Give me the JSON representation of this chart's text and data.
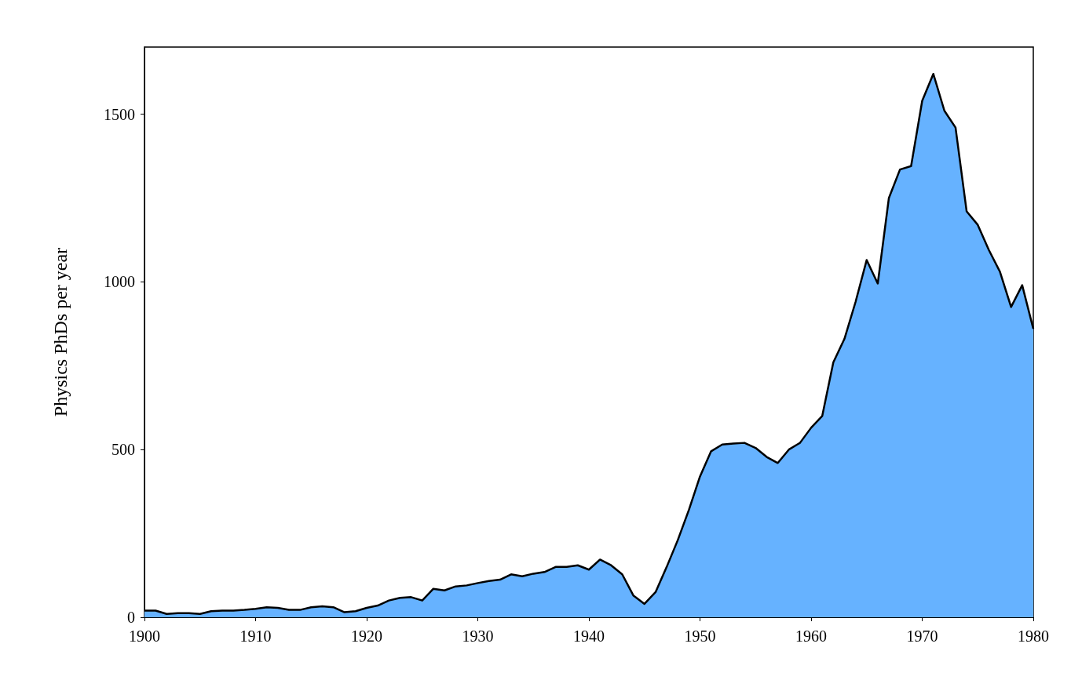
{
  "chart_data": {
    "type": "area",
    "ylabel": "Physics PhDs per year",
    "x": [
      1900,
      1901,
      1902,
      1903,
      1904,
      1905,
      1906,
      1907,
      1908,
      1909,
      1910,
      1911,
      1912,
      1913,
      1914,
      1915,
      1916,
      1917,
      1918,
      1919,
      1920,
      1921,
      1922,
      1923,
      1924,
      1925,
      1926,
      1927,
      1928,
      1929,
      1930,
      1931,
      1932,
      1933,
      1934,
      1935,
      1936,
      1937,
      1938,
      1939,
      1940,
      1941,
      1942,
      1943,
      1944,
      1945,
      1946,
      1947,
      1948,
      1949,
      1950,
      1951,
      1952,
      1953,
      1954,
      1955,
      1956,
      1957,
      1958,
      1959,
      1960,
      1961,
      1962,
      1963,
      1964,
      1965,
      1966,
      1967,
      1968,
      1969,
      1970,
      1971,
      1972,
      1973,
      1974,
      1975,
      1976,
      1977,
      1978,
      1979,
      1980
    ],
    "series": [
      {
        "color": "#66b2ff",
        "values": [
          20,
          20,
          10,
          12,
          12,
          10,
          18,
          20,
          20,
          22,
          25,
          30,
          28,
          22,
          22,
          30,
          33,
          30,
          15,
          18,
          28,
          35,
          50,
          58,
          60,
          50,
          85,
          80,
          92,
          95,
          102,
          108,
          112,
          128,
          122,
          130,
          135,
          150,
          150,
          155,
          142,
          172,
          155,
          128,
          65,
          40,
          75,
          150,
          230,
          320,
          420,
          495,
          515,
          518,
          520,
          505,
          478,
          460,
          500,
          520,
          565,
          600,
          760,
          830,
          940,
          1065,
          995,
          1250,
          1335,
          1345,
          1540,
          1620,
          1510,
          1460,
          1210,
          1170,
          1095,
          1030,
          925,
          990,
          860
        ]
      }
    ],
    "xlim": [
      1900,
      1980
    ],
    "xticks": [
      1900,
      1910,
      1920,
      1930,
      1940,
      1950,
      1960,
      1970,
      1980
    ],
    "ylim": [
      0,
      1700
    ],
    "yticks": [
      0,
      500,
      1000,
      1500
    ],
    "marker": "none",
    "line_style": "solid"
  }
}
